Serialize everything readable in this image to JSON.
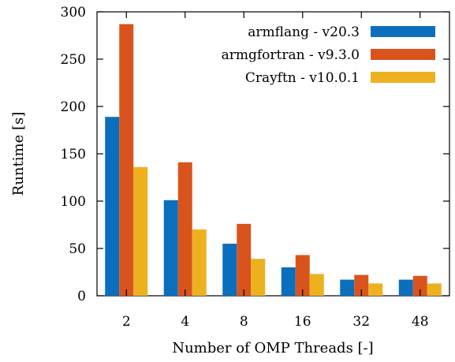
{
  "chart_data": {
    "type": "bar",
    "title": "",
    "xlabel": "Number of OMP Threads [-]",
    "ylabel": "Runtime [s]",
    "ylim": [
      0,
      300
    ],
    "yticks": [
      0,
      50,
      100,
      150,
      200,
      250,
      300
    ],
    "categories": [
      "2",
      "4",
      "8",
      "16",
      "32",
      "48"
    ],
    "series": [
      {
        "name": "armflang - v20.3",
        "color": "#0b6fbd",
        "values": [
          189,
          101,
          55,
          30,
          17,
          17
        ]
      },
      {
        "name": "armgfortran - v9.3.0",
        "color": "#d9541c",
        "values": [
          287,
          141,
          76,
          43,
          22,
          21
        ]
      },
      {
        "name": "Crayftn - v10.0.1",
        "color": "#edb120",
        "values": [
          136,
          70,
          39,
          23,
          13,
          13
        ]
      }
    ],
    "legend": "top-right",
    "grid": false
  }
}
